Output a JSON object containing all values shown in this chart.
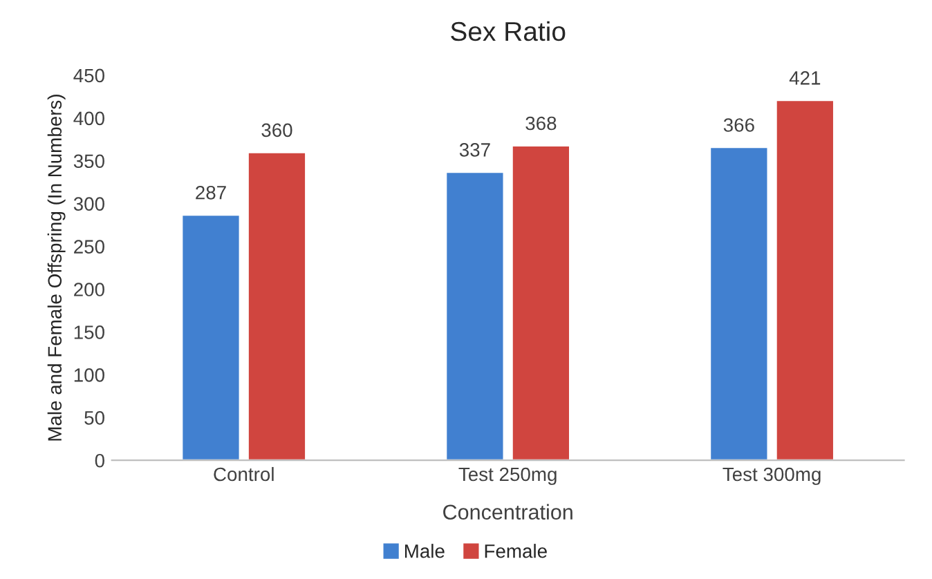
{
  "chart_data": {
    "type": "bar",
    "title": "Sex Ratio",
    "xlabel": "Concentration",
    "ylabel": "Male and Female Offspring (In Numbers)",
    "categories": [
      "Control",
      "Test 250mg",
      "Test 300mg"
    ],
    "series": [
      {
        "name": "Male",
        "color": "#4180d0",
        "values": [
          287,
          337,
          366
        ]
      },
      {
        "name": "Female",
        "color": "#d0453f",
        "values": [
          360,
          368,
          421
        ]
      }
    ],
    "ylim": [
      0,
      450
    ],
    "yticks": [
      0,
      50,
      100,
      150,
      200,
      250,
      300,
      350,
      400,
      450
    ],
    "data_labels": true,
    "grid": false,
    "legend": "bottom"
  }
}
